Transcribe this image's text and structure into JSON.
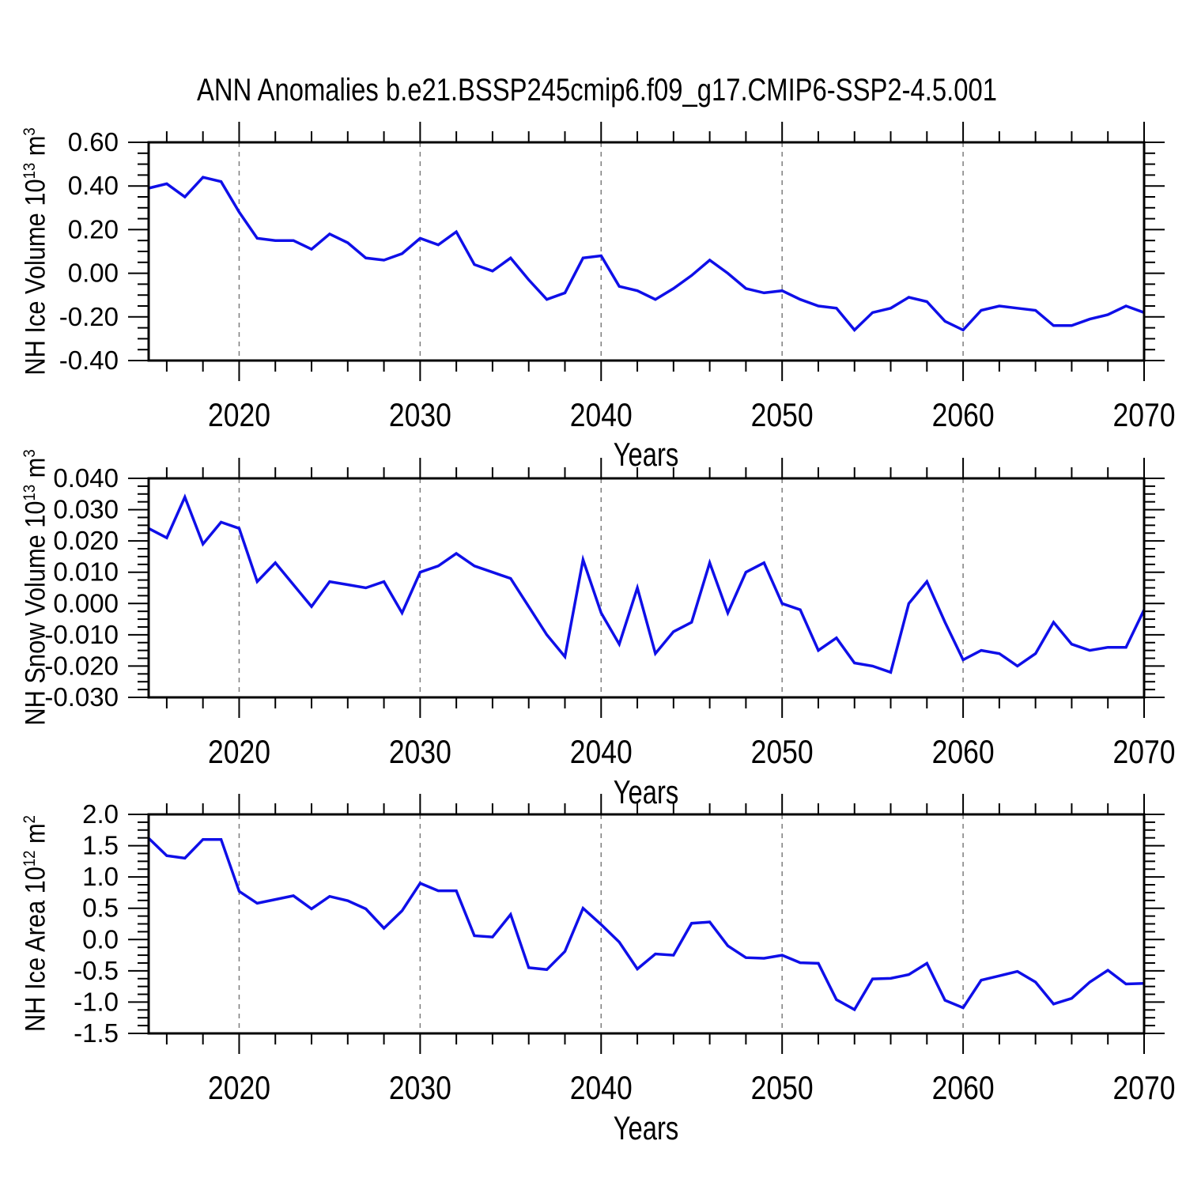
{
  "title": "ANN Anomalies b.e21.BSSP245cmip6.f09_g17.CMIP6-SSP2-4.5.001",
  "colors": {
    "line": "#0f0fe8",
    "grid": "#7d7d7d",
    "frame": "#000000"
  },
  "chart_data": {
    "type": "line",
    "title": "ANN Anomalies b.e21.BSSP245cmip6.f09_g17.CMIP6-SSP2-4.5.001",
    "x_start": 2015,
    "x_end": 2070,
    "years": [
      2015,
      2016,
      2017,
      2018,
      2019,
      2020,
      2021,
      2022,
      2023,
      2024,
      2025,
      2026,
      2027,
      2028,
      2029,
      2030,
      2031,
      2032,
      2033,
      2034,
      2035,
      2036,
      2037,
      2038,
      2039,
      2040,
      2041,
      2042,
      2043,
      2044,
      2045,
      2046,
      2047,
      2048,
      2049,
      2050,
      2051,
      2052,
      2053,
      2054,
      2055,
      2056,
      2057,
      2058,
      2059,
      2060,
      2061,
      2062,
      2063,
      2064,
      2065,
      2066,
      2067,
      2068,
      2069,
      2070
    ],
    "x_major_ticks": [
      2020,
      2030,
      2040,
      2050,
      2060,
      2070
    ],
    "x_tick_labels": [
      "2020",
      "2030",
      "2040",
      "2050",
      "2060",
      "2070"
    ],
    "x_minor_step": 2,
    "grid_years": [
      2020,
      2030,
      2040,
      2050,
      2060
    ],
    "panels": [
      {
        "name": "ice-volume",
        "xlabel": "Years",
        "ylabel_text": "NH Ice Volume 10^13 m^3",
        "ylabel_parts": {
          "pre": "NH Ice Volume 10",
          "sup1": "13",
          "mid": " m",
          "sup2": "3"
        },
        "ylim": [
          -0.4,
          0.6
        ],
        "ytick_step": 0.2,
        "yticks": [
          0.6,
          0.4,
          0.2,
          0.0,
          -0.2,
          -0.4
        ],
        "ytick_labels": [
          "0.60",
          "0.40",
          "0.20",
          "0.00",
          "-0.20",
          "-0.40"
        ],
        "values": [
          0.39,
          0.41,
          0.35,
          0.44,
          0.42,
          0.28,
          0.16,
          0.15,
          0.15,
          0.11,
          0.18,
          0.14,
          0.07,
          0.06,
          0.09,
          0.16,
          0.13,
          0.19,
          0.04,
          0.01,
          0.07,
          -0.03,
          -0.12,
          -0.09,
          0.07,
          0.08,
          -0.06,
          -0.08,
          -0.12,
          -0.07,
          -0.01,
          0.06,
          0.0,
          -0.07,
          -0.09,
          -0.08,
          -0.12,
          -0.15,
          -0.16,
          -0.26,
          -0.18,
          -0.16,
          -0.11,
          -0.13,
          -0.22,
          -0.26,
          -0.17,
          -0.15,
          -0.16,
          -0.17,
          -0.24,
          -0.24,
          -0.21,
          -0.19,
          -0.15,
          -0.18
        ]
      },
      {
        "name": "snow-volume",
        "xlabel": "Years",
        "ylabel_text": "NH Snow Volume 10^13 m^3",
        "ylabel_parts": {
          "pre": "NH Snow Volume 10",
          "sup1": "13",
          "mid": " m",
          "sup2": "3"
        },
        "ylim": [
          -0.03,
          0.04
        ],
        "ytick_step": 0.01,
        "yticks": [
          0.04,
          0.03,
          0.02,
          0.01,
          0.0,
          -0.01,
          -0.02,
          -0.03
        ],
        "ytick_labels": [
          "0.040",
          "0.030",
          "0.020",
          "0.010",
          "0.000",
          "-0.010",
          "-0.020",
          "-0.030"
        ],
        "values": [
          0.024,
          0.021,
          0.034,
          0.019,
          0.026,
          0.024,
          0.007,
          0.013,
          0.006,
          -0.001,
          0.007,
          0.006,
          0.005,
          0.007,
          -0.003,
          0.01,
          0.012,
          0.016,
          0.012,
          0.01,
          0.008,
          -0.001,
          -0.01,
          -0.017,
          0.014,
          -0.003,
          -0.013,
          0.005,
          -0.016,
          -0.009,
          -0.006,
          0.013,
          -0.003,
          0.01,
          0.013,
          0.0,
          -0.002,
          -0.015,
          -0.011,
          -0.019,
          -0.02,
          -0.022,
          0.0,
          0.007,
          -0.006,
          -0.018,
          -0.015,
          -0.016,
          -0.02,
          -0.016,
          -0.006,
          -0.013,
          -0.015,
          -0.014,
          -0.014,
          -0.002
        ]
      },
      {
        "name": "ice-area",
        "xlabel": "Years",
        "ylabel_text": "NH Ice Area 10^12 m^2",
        "ylabel_parts": {
          "pre": "NH Ice Area 10",
          "sup1": "12",
          "mid": " m",
          "sup2": "2"
        },
        "ylim": [
          -1.5,
          2.0
        ],
        "ytick_step": 0.5,
        "yticks": [
          2.0,
          1.5,
          1.0,
          0.5,
          0.0,
          -0.5,
          -1.0,
          -1.5
        ],
        "ytick_labels": [
          "2.0",
          "1.5",
          "1.0",
          "0.5",
          "0.0",
          "-0.5",
          "-1.0",
          "-1.5"
        ],
        "values": [
          1.62,
          1.34,
          1.3,
          1.6,
          1.6,
          0.77,
          0.58,
          0.64,
          0.7,
          0.49,
          0.69,
          0.62,
          0.49,
          0.18,
          0.46,
          0.9,
          0.78,
          0.78,
          0.06,
          0.04,
          0.4,
          -0.45,
          -0.48,
          -0.19,
          0.5,
          0.24,
          -0.04,
          -0.47,
          -0.23,
          -0.25,
          0.26,
          0.28,
          -0.1,
          -0.29,
          -0.3,
          -0.25,
          -0.37,
          -0.38,
          -0.96,
          -1.12,
          -0.63,
          -0.62,
          -0.56,
          -0.38,
          -0.97,
          -1.09,
          -0.65,
          -0.58,
          -0.51,
          -0.68,
          -1.03,
          -0.94,
          -0.68,
          -0.49,
          -0.71,
          -0.7
        ]
      }
    ]
  }
}
